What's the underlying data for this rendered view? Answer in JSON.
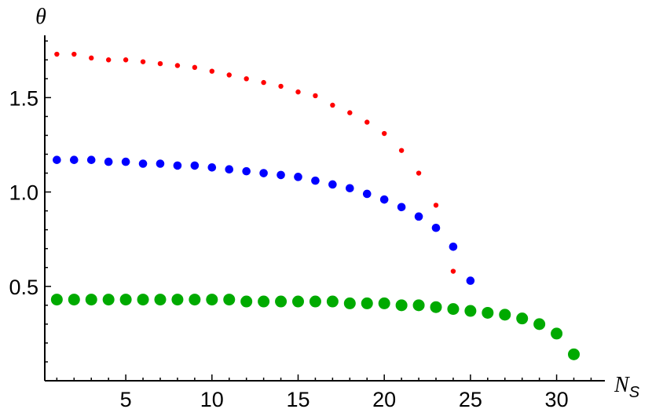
{
  "chart_data": {
    "type": "scatter",
    "title": "",
    "xlabel": "N",
    "xlabel_subscript": "S",
    "ylabel": "θ",
    "xlim": [
      0.3,
      32.8
    ],
    "ylim": [
      0.0,
      1.83
    ],
    "x_ticks": [
      5,
      10,
      15,
      20,
      25,
      30
    ],
    "x_tick_labels": [
      "5",
      "10",
      "15",
      "20",
      "25",
      "30"
    ],
    "y_ticks": [
      0.5,
      1.0,
      1.5
    ],
    "y_tick_labels": [
      "0.5",
      "1.0",
      "1.5"
    ],
    "grid": false,
    "legend": "none",
    "series": [
      {
        "color": "#ff0000",
        "marker_size": "small",
        "x": [
          1,
          2,
          3,
          4,
          5,
          6,
          7,
          8,
          9,
          10,
          11,
          12,
          13,
          14,
          15,
          16,
          17,
          18,
          19,
          20,
          21,
          22,
          23,
          24
        ],
        "y": [
          1.73,
          1.73,
          1.71,
          1.7,
          1.7,
          1.69,
          1.68,
          1.67,
          1.66,
          1.64,
          1.62,
          1.6,
          1.58,
          1.56,
          1.53,
          1.51,
          1.46,
          1.42,
          1.37,
          1.31,
          1.22,
          1.1,
          0.93,
          0.58
        ]
      },
      {
        "color": "#0000ff",
        "marker_size": "medium",
        "x": [
          1,
          2,
          3,
          4,
          5,
          6,
          7,
          8,
          9,
          10,
          11,
          12,
          13,
          14,
          15,
          16,
          17,
          18,
          19,
          20,
          21,
          22,
          23,
          24,
          25
        ],
        "y": [
          1.17,
          1.17,
          1.17,
          1.16,
          1.16,
          1.15,
          1.15,
          1.14,
          1.14,
          1.13,
          1.12,
          1.11,
          1.1,
          1.09,
          1.08,
          1.06,
          1.04,
          1.02,
          0.99,
          0.96,
          0.92,
          0.87,
          0.81,
          0.71,
          0.53
        ]
      },
      {
        "color": "#00aa00",
        "marker_size": "large",
        "x": [
          1,
          2,
          3,
          4,
          5,
          6,
          7,
          8,
          9,
          10,
          11,
          12,
          13,
          14,
          15,
          16,
          17,
          18,
          19,
          20,
          21,
          22,
          23,
          24,
          25,
          26,
          27,
          28,
          29,
          30,
          31
        ],
        "y": [
          0.43,
          0.43,
          0.43,
          0.43,
          0.43,
          0.43,
          0.43,
          0.43,
          0.43,
          0.43,
          0.43,
          0.42,
          0.42,
          0.42,
          0.42,
          0.42,
          0.42,
          0.41,
          0.41,
          0.41,
          0.4,
          0.4,
          0.39,
          0.38,
          0.37,
          0.36,
          0.35,
          0.33,
          0.3,
          0.25,
          0.14
        ]
      }
    ]
  }
}
